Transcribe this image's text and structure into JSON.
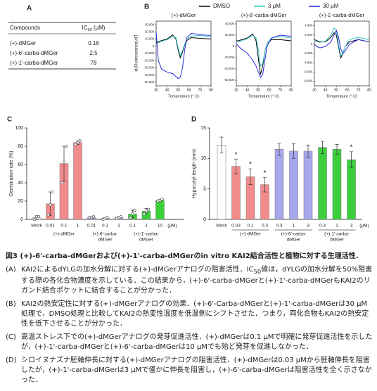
{
  "panel_labels": [
    "A",
    "B",
    "C",
    "D"
  ],
  "table": {
    "header": [
      "Compounds",
      [
        "IC",
        "50",
        " (μM)"
      ]
    ],
    "rows": [
      [
        "(+)-dMGer",
        "0.16"
      ],
      [
        "(+)-6'-carba-dMGer",
        "2.5"
      ],
      [
        "(+)-1'-carba-dMGer",
        "78"
      ]
    ]
  },
  "legend": [
    {
      "name": "DMSO",
      "color": "#000000"
    },
    {
      "name": "3 μM",
      "color": "#33c4c4"
    },
    {
      "name": "30 μM",
      "color": "#2a2ae0"
    }
  ],
  "chart_data": [
    {
      "type": "line",
      "title": "(+)-dMGer",
      "xlabel": "Temperature (° C)",
      "ylabel": "-d(Fluorescence)/dT",
      "x": [
        30,
        32,
        35,
        40,
        45,
        48,
        50,
        52,
        54,
        56,
        58,
        62,
        70,
        80
      ],
      "xlim": [
        30,
        80
      ],
      "xticks": [
        30,
        40,
        50,
        60,
        70,
        80
      ],
      "ylim": [
        -55000,
        35000
      ],
      "yticks": [
        {
          "value": -50000,
          "label": "-50,000"
        },
        {
          "value": -40000,
          "label": "-40,000"
        },
        {
          "value": -30000,
          "label": "-30,000"
        },
        {
          "value": -20000,
          "label": "-20,000"
        },
        {
          "value": -10000,
          "label": "-10,000"
        },
        0,
        {
          "value": 10000,
          "label": "10,000"
        },
        {
          "value": 20000,
          "label": "20,000"
        },
        {
          "value": 30000,
          "label": "30,000"
        }
      ],
      "series": [
        {
          "values": [
            5000,
            6000,
            8000,
            10000,
            16000,
            10000,
            -5000,
            -16000,
            -8000,
            2000,
            8000,
            12000,
            11000,
            10000
          ]
        },
        {
          "values": [
            4000,
            5000,
            7000,
            9000,
            14000,
            12000,
            -2000,
            -13000,
            -6000,
            3000,
            10000,
            14000,
            15000,
            13000
          ]
        },
        {
          "values": [
            20000,
            -20000,
            -32000,
            -36000,
            -38000,
            -42000,
            -45000,
            -43000,
            -30000,
            -5000,
            12000,
            18000,
            16000,
            15000
          ]
        }
      ]
    },
    {
      "type": "line",
      "title": "(+)-6'-carba-dMGer",
      "xlabel": "Temperature (° C)",
      "x": [
        30,
        32,
        35,
        40,
        45,
        48,
        50,
        52,
        54,
        56,
        58,
        62,
        70,
        80
      ],
      "xlim": [
        30,
        80
      ],
      "xticks": [
        30,
        40,
        50,
        60,
        70,
        80
      ],
      "ylim": [
        -70000,
        45000
      ],
      "yticks": [
        {
          "value": -60000,
          "label": "-60,000"
        },
        {
          "value": -40000,
          "label": "-40,000"
        },
        {
          "value": -20000,
          "label": "-20,000"
        },
        0,
        {
          "value": 20000,
          "label": "20,000"
        },
        {
          "value": 40000,
          "label": "40,000"
        }
      ],
      "series": [
        {
          "values": [
            10000,
            10000,
            12000,
            15000,
            22000,
            10000,
            -20000,
            -50000,
            -35000,
            -10000,
            5000,
            12000,
            12000,
            10000
          ]
        },
        {
          "values": [
            8000,
            8000,
            10000,
            14000,
            20000,
            15000,
            -5000,
            -35000,
            -30000,
            -10000,
            5000,
            15000,
            18000,
            15000
          ]
        },
        {
          "values": [
            5000,
            0,
            -5000,
            -12000,
            -25000,
            -35000,
            -45000,
            -55000,
            -50000,
            -25000,
            0,
            15000,
            20000,
            18000
          ]
        }
      ]
    },
    {
      "type": "line",
      "title": "(+)-1'-carba-dMGer",
      "xlabel": "Temperature (° C)",
      "x": [
        30,
        32,
        35,
        40,
        45,
        48,
        50,
        52,
        54,
        56,
        58,
        62,
        70,
        80
      ],
      "xlim": [
        30,
        80
      ],
      "xticks": [
        30,
        40,
        50,
        60,
        70,
        80
      ],
      "ylim": [
        -9000,
        5000
      ],
      "yticks": [
        {
          "value": -8000,
          "label": "-8,000"
        },
        {
          "value": -6000,
          "label": "-6,000"
        },
        {
          "value": -4000,
          "label": "-4,000"
        },
        {
          "value": -2000,
          "label": "-2,000"
        },
        0,
        {
          "value": 2000,
          "label": "2,000"
        },
        {
          "value": 4000,
          "label": "4,000"
        }
      ],
      "series": [
        {
          "values": [
            1000,
            800,
            500,
            500,
            1500,
            2500,
            2000,
            -500,
            -3000,
            -2000,
            -500,
            500,
            1000,
            500
          ]
        },
        {
          "values": [
            800,
            600,
            400,
            600,
            2000,
            3500,
            3000,
            0,
            -2500,
            -2000,
            -500,
            1000,
            1500,
            1000
          ]
        },
        {
          "values": [
            0,
            -500,
            -800,
            -500,
            500,
            2000,
            3000,
            1500,
            -1000,
            -2000,
            -1500,
            0,
            1000,
            500
          ]
        }
      ]
    },
    {
      "type": "bar",
      "ylabel": "Germination rate (%)",
      "ylim": [
        0,
        100
      ],
      "yticks": [
        0,
        20,
        40,
        60,
        80,
        100
      ],
      "categories": [
        "Mock",
        "0.01",
        "0.1",
        "1",
        "0.01",
        "0.1",
        "1",
        "0.1",
        "1",
        "10"
      ],
      "unit_label": "(μM)",
      "values": [
        2,
        17,
        61,
        84,
        2,
        1,
        2,
        6,
        9,
        21
      ],
      "errors": [
        2,
        13,
        19,
        2,
        1,
        1,
        1,
        4,
        3,
        1
      ],
      "points": [
        [
          0,
          3,
          3
        ],
        [
          5,
          16,
          30
        ],
        [
          40,
          62,
          80
        ],
        [
          82,
          84,
          86
        ],
        [
          2,
          2,
          3
        ],
        [
          0,
          1,
          2
        ],
        [
          1,
          2,
          3
        ],
        [
          2,
          6,
          10
        ],
        [
          6,
          9,
          11
        ],
        [
          20,
          21,
          22
        ]
      ],
      "bar_colors": [
        "#ffffff",
        "#f28b8b",
        "#f28b8b",
        "#f28b8b",
        "#a7a7ee",
        "#a7a7ee",
        "#a7a7ee",
        "#3ccf3c",
        "#3ccf3c",
        "#3ccf3c"
      ],
      "groups": [
        {
          "label": [
            "(+)-dMGer"
          ],
          "first": 1,
          "last": 3
        },
        {
          "label": [
            "(+)-6'-carba-",
            "dMGer"
          ],
          "first": 4,
          "last": 6
        },
        {
          "label": [
            "(+)-1'-carba-",
            "dMGer"
          ],
          "first": 7,
          "last": 9
        }
      ]
    },
    {
      "type": "bar",
      "ylabel": "Hypocotyl length (mm)",
      "ylim": [
        0,
        15
      ],
      "yticks": [
        0,
        5,
        10,
        15
      ],
      "group_brackets": true,
      "categories": [
        "Mock",
        "0.03",
        "0.1",
        "0.3",
        "0.3",
        "1",
        "3",
        "0.3",
        "1",
        "3"
      ],
      "unit_label": "(μM)",
      "values": [
        12.2,
        8.7,
        7.0,
        5.7,
        11.5,
        11.2,
        11.2,
        11.8,
        11.5,
        9.8
      ],
      "errors": [
        1.3,
        1.2,
        1.3,
        1.2,
        1.0,
        1.2,
        1.0,
        1.0,
        0.8,
        1.3
      ],
      "significance": [
        null,
        "*",
        "*",
        "*",
        null,
        null,
        null,
        null,
        null,
        "*"
      ],
      "bar_colors": [
        "#ffffff",
        "#f28b8b",
        "#f28b8b",
        "#f28b8b",
        "#a7a7ee",
        "#a7a7ee",
        "#a7a7ee",
        "#3ccf3c",
        "#3ccf3c",
        "#3ccf3c"
      ],
      "groups": [
        {
          "label": [
            "(+)-dMGer"
          ],
          "first": 1,
          "last": 3
        },
        {
          "label": [
            "(+)-6'-carba-",
            "dMGer"
          ],
          "first": 4,
          "last": 6
        },
        {
          "label": [
            "(+)-1'-carba-",
            "dMGer"
          ],
          "first": 7,
          "last": 9
        }
      ]
    }
  ],
  "caption": {
    "title": "図3 (+)-6'-carba-dMGerおよび(+)-1'-carba-dMGerのin vitro KAI2結合活性と植物に対する生理活性.",
    "items": [
      {
        "label": "(A)",
        "text": [
          "KAI2によるdYLGの加水分解に対する(+)-dMGerアナログの阻害活性．IC",
          "50",
          "値は，dYLGの加水分解を50%阻害する際の各化合物濃度を示している．この結果から，(+)-6'-carba-dMGerと(+)-1'-carba-dMGerもKAI2のリガンド結合ポケットに結合することが分かった．"
        ]
      },
      {
        "label": "(B)",
        "text": [
          "KAI2の熱安定性に対する(+)-dMGerアナログの効果．(+)-6'-Carba-dMGerと(+)-1'-carba-dMGerは30 μM処理で，DMSO処理と比較してKAI2の熱変性温度を低温側にシフトさせた．つまり，両化合物もKAI2の熱安定性を低下させることが分かった．"
        ]
      },
      {
        "label": "(C)",
        "text": [
          "高温ストレス下での(+)-dMGerアナログの発芽促進活性．(+)-dMGerは0.1 μMで明確に発芽促進活性を示したが，(+)-1'-carba-dMGerと(+)-6'-carba-dMGerは10 μMでも殆ど発芽を促進しなかった．"
        ]
      },
      {
        "label": "(D)",
        "text": [
          "シロイヌナズナ胚軸伸長に対する(+)-dMGerアナログの阻害活性．(+)-dMGerは0.03 μMから胚軸伸長を阻害したが，(+)-1'-carba-dMGerは3 μMで僅かに伸長を阻害し，(+)-6'-carba-dMGerは阻害活性を全く示さなかった．"
        ]
      }
    ]
  }
}
